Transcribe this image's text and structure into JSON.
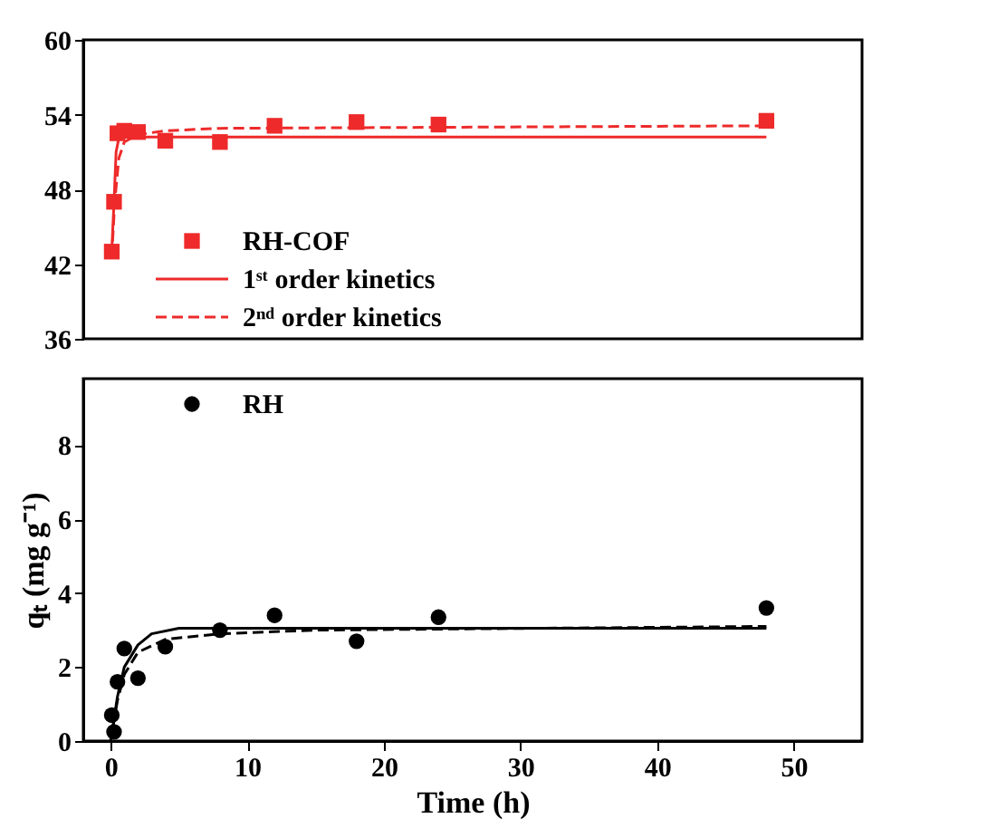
{
  "chart_data": [
    {
      "type": "scatter",
      "xlim": [
        -2,
        55
      ],
      "ylim": [
        36,
        60
      ],
      "yticks": [
        36,
        42,
        48,
        54,
        60
      ],
      "tick_labels": "y",
      "grid": false,
      "legend": "bottom left",
      "series": [
        {
          "name": "RH-COF",
          "marker": "square",
          "color": "#ee2a2a",
          "x": [
            0.083,
            0.25,
            0.5,
            1,
            2,
            4,
            8,
            12,
            18,
            24,
            48
          ],
          "values": [
            43,
            47,
            52.5,
            52.7,
            52.6,
            51.9,
            51.8,
            53.1,
            53.4,
            53.2,
            53.5
          ]
        },
        {
          "name": "1ˢᵗ order kinetics",
          "type": "line",
          "line_style": "solid",
          "color": "#ee2a2a",
          "x": [
            0.08,
            0.25,
            0.4,
            0.6,
            1,
            48
          ],
          "values": [
            43,
            47,
            51,
            52.1,
            52.2,
            52.2
          ]
        },
        {
          "name": "2ⁿᵈ order kinetics",
          "type": "line",
          "line_style": "dashed",
          "color": "#ee2a2a",
          "x": [
            0.08,
            0.3,
            0.6,
            1,
            2,
            4,
            8,
            48
          ],
          "values": [
            42.5,
            47,
            50.5,
            51.8,
            52.4,
            52.7,
            52.9,
            53.1
          ]
        }
      ]
    },
    {
      "type": "scatter",
      "xlabel": "Time (h)",
      "ylabel": "qₜ (mg g⁻¹)",
      "xlim": [
        -2,
        55
      ],
      "xticks": [
        0,
        10,
        20,
        30,
        40,
        50
      ],
      "ylim": [
        0,
        9.8
      ],
      "yticks": [
        0,
        2,
        4,
        6,
        8
      ],
      "grid": false,
      "legend": "top left",
      "series": [
        {
          "name": "RH",
          "marker": "circle",
          "color": "#000000",
          "x": [
            0.083,
            0.25,
            0.5,
            1,
            2,
            4,
            8,
            12,
            18,
            24,
            48
          ],
          "values": [
            0.7,
            0.25,
            1.6,
            2.5,
            1.7,
            2.55,
            3.0,
            3.4,
            2.7,
            3.35,
            3.6
          ]
        },
        {
          "type": "line",
          "line_style": "solid",
          "color": "#000000",
          "x": [
            0,
            0.5,
            1,
            2,
            3,
            5,
            48
          ],
          "values": [
            0,
            1.2,
            2.0,
            2.6,
            2.9,
            3.05,
            3.05
          ]
        },
        {
          "type": "line",
          "line_style": "dashed",
          "color": "#000000",
          "x": [
            0,
            0.5,
            1,
            2,
            4,
            8,
            15,
            48
          ],
          "values": [
            0,
            1.1,
            1.8,
            2.4,
            2.75,
            2.9,
            3.0,
            3.1
          ]
        }
      ]
    }
  ]
}
